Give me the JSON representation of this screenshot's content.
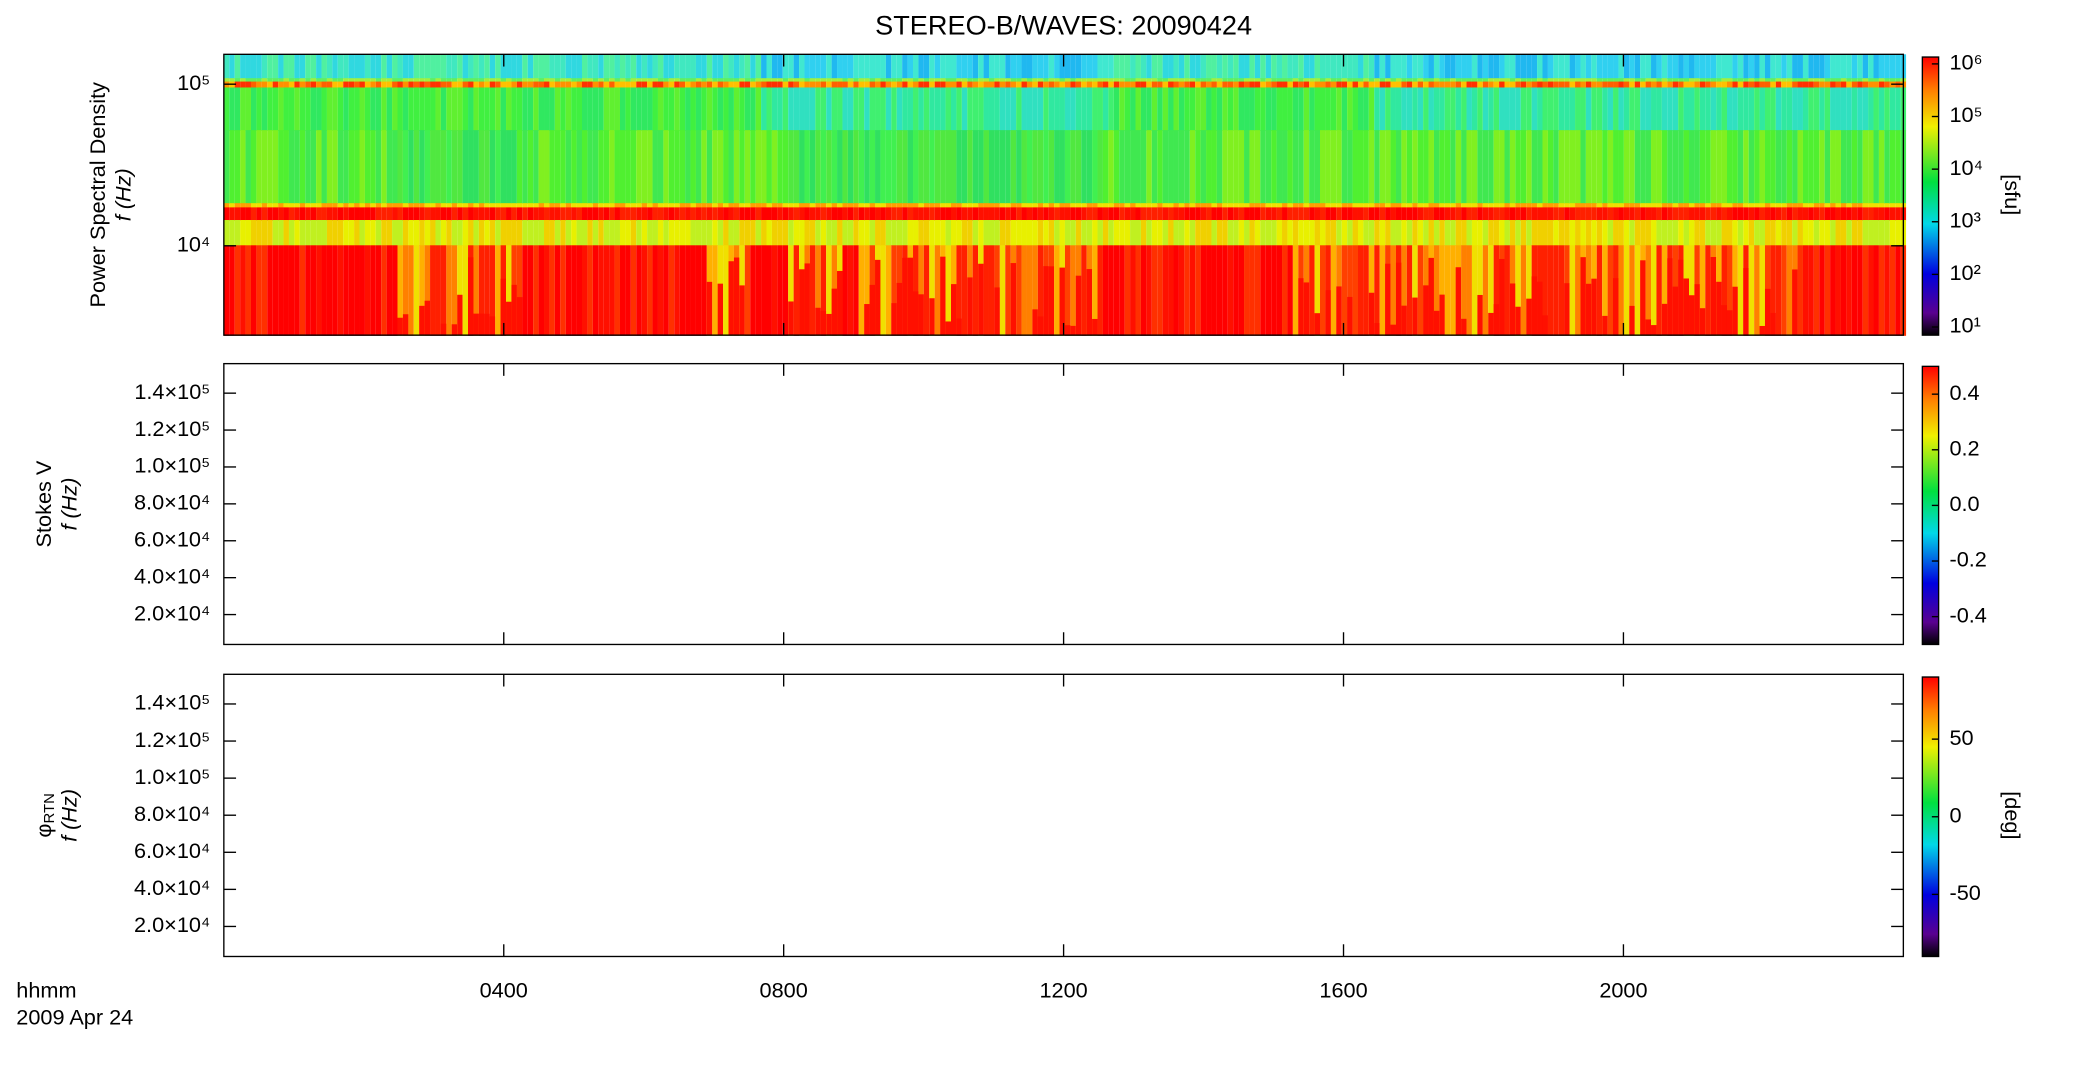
{
  "title": "STEREO-B/WAVES: 20090424",
  "x_axis": {
    "label": "hhmm",
    "date": "2009 Apr 24",
    "xlim": [
      0,
      24
    ],
    "xticks": [
      {
        "value": 4,
        "label": "0400"
      },
      {
        "value": 8,
        "label": "0800"
      },
      {
        "value": 12,
        "label": "1200"
      },
      {
        "value": 16,
        "label": "1600"
      },
      {
        "value": 20,
        "label": "2000"
      }
    ]
  },
  "panels": [
    {
      "type": "spectrogram",
      "ylabel": "Power Spectral Density",
      "ylabel2": "f (Hz)",
      "yscale": "log",
      "ylim": [
        2800,
        153000
      ],
      "yticks": [
        {
          "value": 10000,
          "label": "10⁴"
        },
        {
          "value": 100000,
          "label": "10⁵"
        }
      ],
      "colorbar": {
        "scale": "log",
        "zlim": [
          7,
          1350000
        ],
        "label": "[sfu]",
        "ticks": [
          {
            "value": 10,
            "label": "10¹"
          },
          {
            "value": 100,
            "label": "10²"
          },
          {
            "value": 1000,
            "label": "10³"
          },
          {
            "value": 10000,
            "label": "10⁴"
          },
          {
            "value": 100000,
            "label": "10⁵"
          },
          {
            "value": 1000000,
            "label": "10⁶"
          }
        ]
      }
    },
    {
      "type": "empty",
      "ylabel": "Stokes V",
      "ylabel2": "f (Hz)",
      "yscale": "linear",
      "ylim": [
        3800,
        156000
      ],
      "yticks": [
        {
          "value": 20000,
          "label": "2.0×10⁴"
        },
        {
          "value": 40000,
          "label": "4.0×10⁴"
        },
        {
          "value": 60000,
          "label": "6.0×10⁴"
        },
        {
          "value": 80000,
          "label": "8.0×10⁴"
        },
        {
          "value": 100000,
          "label": "1.0×10⁵"
        },
        {
          "value": 120000,
          "label": "1.2×10⁵"
        },
        {
          "value": 140000,
          "label": "1.4×10⁵"
        }
      ],
      "colorbar": {
        "scale": "linear",
        "zlim": [
          -0.5,
          0.5
        ],
        "ticks": [
          -0.4,
          -0.2,
          {
            "value": 0,
            "label": "0.0"
          },
          0.2,
          0.4
        ]
      }
    },
    {
      "type": "empty",
      "ylabel": "φ",
      "ylabel_sub": "RTN",
      "ylabel2": "f (Hz)",
      "yscale": "linear",
      "ylim": [
        3800,
        156000
      ],
      "yticks": [
        {
          "value": 20000,
          "label": "2.0×10⁴"
        },
        {
          "value": 40000,
          "label": "4.0×10⁴"
        },
        {
          "value": 60000,
          "label": "6.0×10⁴"
        },
        {
          "value": 80000,
          "label": "8.0×10⁴"
        },
        {
          "value": 100000,
          "label": "1.0×10⁵"
        },
        {
          "value": 120000,
          "label": "1.2×10⁵"
        },
        {
          "value": 140000,
          "label": "1.4×10⁵"
        }
      ],
      "colorbar": {
        "scale": "linear",
        "zlim": [
          -90,
          90
        ],
        "label": "[deg]",
        "ticks": [
          -50,
          0,
          50
        ]
      }
    }
  ]
}
